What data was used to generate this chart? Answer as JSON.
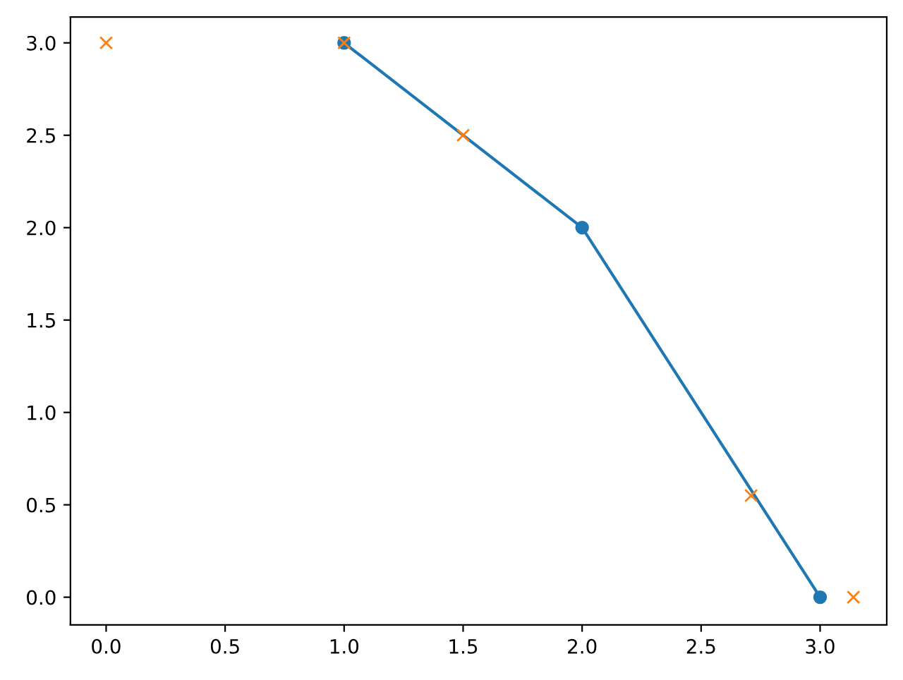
{
  "chart_data": {
    "type": "line",
    "xlim": [
      -0.15,
      3.28
    ],
    "ylim": [
      -0.15,
      3.14
    ],
    "xticks": [
      {
        "value": 0,
        "label": "0.0"
      },
      {
        "value": 0.5,
        "label": "0.5"
      },
      {
        "value": 1,
        "label": "1.0"
      },
      {
        "value": 1.5,
        "label": "1.5"
      },
      {
        "value": 2,
        "label": "2.0"
      },
      {
        "value": 2.5,
        "label": "2.5"
      },
      {
        "value": 3,
        "label": "3.0"
      }
    ],
    "yticks": [
      {
        "value": 0,
        "label": "0.0"
      },
      {
        "value": 0.5,
        "label": "0.5"
      },
      {
        "value": 1,
        "label": "1.0"
      },
      {
        "value": 1.5,
        "label": "1.5"
      },
      {
        "value": 2,
        "label": "2.0"
      },
      {
        "value": 2.5,
        "label": "2.5"
      },
      {
        "value": 3,
        "label": "3.0"
      }
    ],
    "grid": false,
    "series": [
      {
        "marker": "circle",
        "line_style": "solid",
        "color": "#1f77b4",
        "x": [
          1,
          2,
          3
        ],
        "values": [
          3,
          2,
          0
        ]
      },
      {
        "type": "scatter",
        "marker": "cross",
        "color": "#ff7f0e",
        "x": [
          0,
          1,
          1.5,
          2.71,
          3.14
        ],
        "values": [
          3,
          3,
          2.5,
          0.55,
          0
        ]
      }
    ]
  }
}
